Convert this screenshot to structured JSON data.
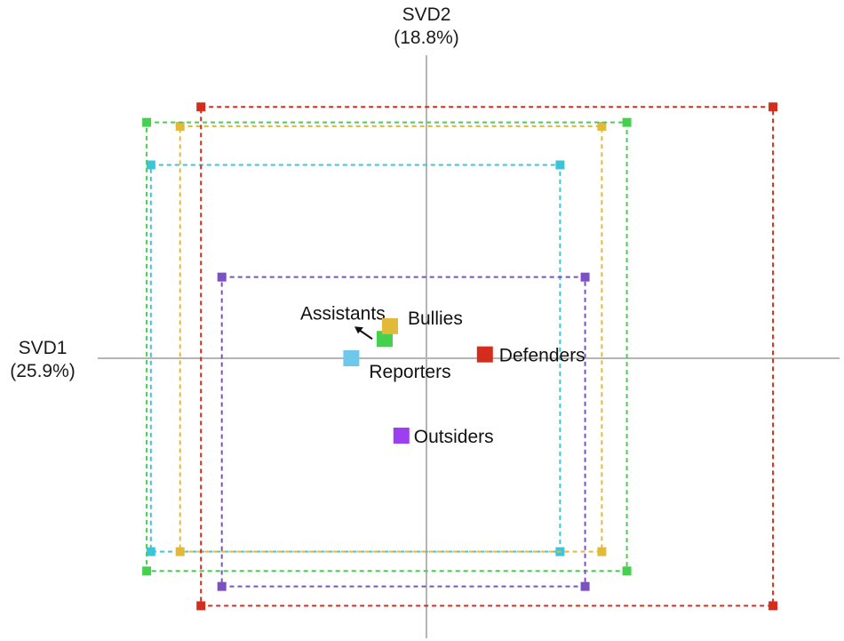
{
  "chart_data": {
    "type": "scatter",
    "x_axis": {
      "name": "SVD1",
      "variance": "(25.9%)",
      "range": [
        -1.0,
        1.0
      ]
    },
    "y_axis": {
      "name": "SVD2",
      "variance": "(18.8%)",
      "range": [
        -0.8,
        0.8
      ]
    },
    "grid": false,
    "legend": "none",
    "points": [
      {
        "label": "Assistants",
        "x": -0.1,
        "y": 0.05,
        "color": "#45d04d"
      },
      {
        "label": "Bullies",
        "x": -0.1,
        "y": 0.06,
        "color": "#e3b93a"
      },
      {
        "label": "Reporters",
        "x": -0.18,
        "y": 0.0,
        "color": "#6ec8ec"
      },
      {
        "label": "Defenders",
        "x": 0.14,
        "y": 0.01,
        "color": "#d42d1e"
      },
      {
        "label": "Outsiders",
        "x": -0.06,
        "y": -0.2,
        "color": "#9b3ff0"
      }
    ],
    "ranges": [
      {
        "group": "Reporters",
        "x": [
          -0.66,
          0.32
        ],
        "y": [
          -0.5,
          0.5
        ],
        "color": "#3cc4d8"
      },
      {
        "group": "Bullies",
        "x": [
          -0.59,
          0.42
        ],
        "y": [
          -0.5,
          0.6
        ],
        "color": "#e3b93a"
      },
      {
        "group": "Assistants",
        "x": [
          -0.67,
          0.48
        ],
        "y": [
          -0.55,
          0.61
        ],
        "color": "#45d04d"
      },
      {
        "group": "Outsiders",
        "x": [
          -0.49,
          0.38
        ],
        "y": [
          -0.59,
          0.21
        ],
        "color": "#7a50c2"
      },
      {
        "group": "Defenders",
        "x": [
          -0.54,
          0.83
        ],
        "y": [
          -0.64,
          0.65
        ],
        "color": "#d42d1e"
      }
    ]
  }
}
